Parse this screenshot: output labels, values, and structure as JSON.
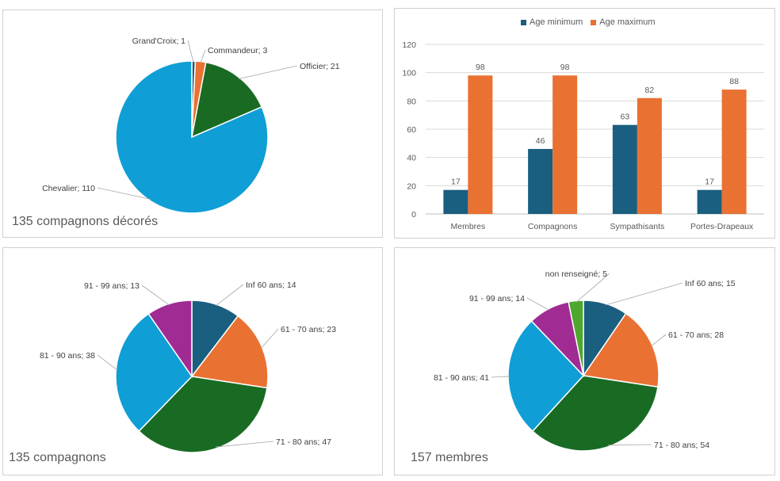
{
  "colors": {
    "blue_dark": "#1a5e80",
    "orange": "#e97132",
    "green": "#196b24",
    "light_blue": "#0f9ed5",
    "purple": "#a02b93",
    "light_green": "#4ea72e"
  },
  "chart_data": [
    {
      "type": "pie",
      "caption": "135 compagnons décorés",
      "slices": [
        {
          "label": "Grand'Croix; 1",
          "name": "Grand'Croix",
          "value": 1,
          "color": "#1a5e80"
        },
        {
          "label": "Commandeur; 3",
          "name": "Commandeur",
          "value": 3,
          "color": "#e97132"
        },
        {
          "label": "Officier; 21",
          "name": "Officier",
          "value": 21,
          "color": "#196b24"
        },
        {
          "label": "Chevalier; 110",
          "name": "Chevalier",
          "value": 110,
          "color": "#0f9ed5"
        }
      ]
    },
    {
      "type": "bar",
      "categories": [
        "Membres",
        "Compagnons",
        "Sympathisants",
        "Portes-Drapeaux"
      ],
      "series": [
        {
          "name": "Age minimum",
          "values": [
            17,
            46,
            63,
            17
          ],
          "color": "#1a5e80"
        },
        {
          "name": "Age maximum",
          "values": [
            98,
            98,
            82,
            88
          ],
          "color": "#e97132"
        }
      ],
      "ylim": [
        0,
        120
      ],
      "yticks": [
        "0",
        "20",
        "40",
        "60",
        "80",
        "100",
        "120"
      ],
      "grid": true,
      "legend": "top"
    },
    {
      "type": "pie",
      "caption": "135 compagnons",
      "slices": [
        {
          "label": "Inf 60 ans; 14",
          "value": 14,
          "color": "#1a5e80"
        },
        {
          "label": "61 - 70 ans; 23",
          "value": 23,
          "color": "#e97132"
        },
        {
          "label": "71 - 80 ans; 47",
          "value": 47,
          "color": "#196b24"
        },
        {
          "label": "81 - 90 ans; 38",
          "value": 38,
          "color": "#0f9ed5"
        },
        {
          "label": "91 - 99 ans; 13",
          "value": 13,
          "color": "#a02b93"
        }
      ]
    },
    {
      "type": "pie",
      "caption": "157 membres",
      "slices": [
        {
          "label": "Inf 60 ans; 15",
          "value": 15,
          "color": "#1a5e80"
        },
        {
          "label": "61 - 70 ans; 28",
          "value": 28,
          "color": "#e97132"
        },
        {
          "label": "71 - 80 ans; 54",
          "value": 54,
          "color": "#196b24"
        },
        {
          "label": "81 - 90 ans; 41",
          "value": 41,
          "color": "#0f9ed5"
        },
        {
          "label": "91 - 99 ans; 14",
          "value": 14,
          "color": "#a02b93"
        },
        {
          "label": "non renseigné; 5",
          "value": 5,
          "color": "#4ea72e"
        }
      ]
    }
  ]
}
